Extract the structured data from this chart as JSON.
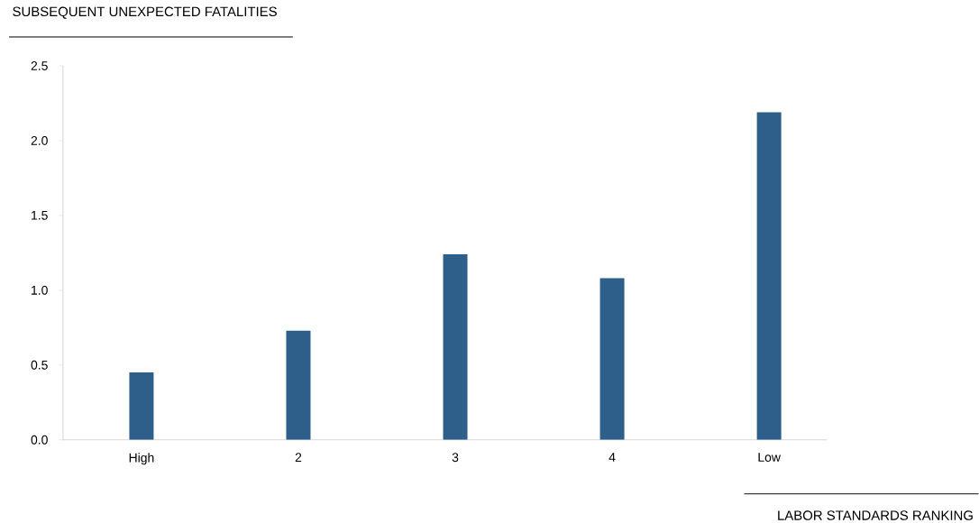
{
  "chart_data": {
    "type": "bar",
    "ylabel": "SUBSEQUENT UNEXPECTED FATALITIES",
    "xlabel": "LABOR STANDARDS RANKING",
    "categories": [
      "High",
      "2",
      "3",
      "4",
      "Low"
    ],
    "values": [
      0.45,
      0.73,
      1.24,
      1.08,
      2.19
    ],
    "color": "#2e5f8a",
    "ylim": [
      0,
      2.5
    ],
    "yticks": [
      {
        "value": 0,
        "label": "0.0"
      },
      {
        "value": 0.5,
        "label": "0.5"
      },
      {
        "value": 1,
        "label": "1.0"
      },
      {
        "value": 1.5,
        "label": "1.5"
      },
      {
        "value": 2,
        "label": "2.0"
      },
      {
        "value": 2.5,
        "label": "2.5"
      }
    ],
    "grid": false
  }
}
